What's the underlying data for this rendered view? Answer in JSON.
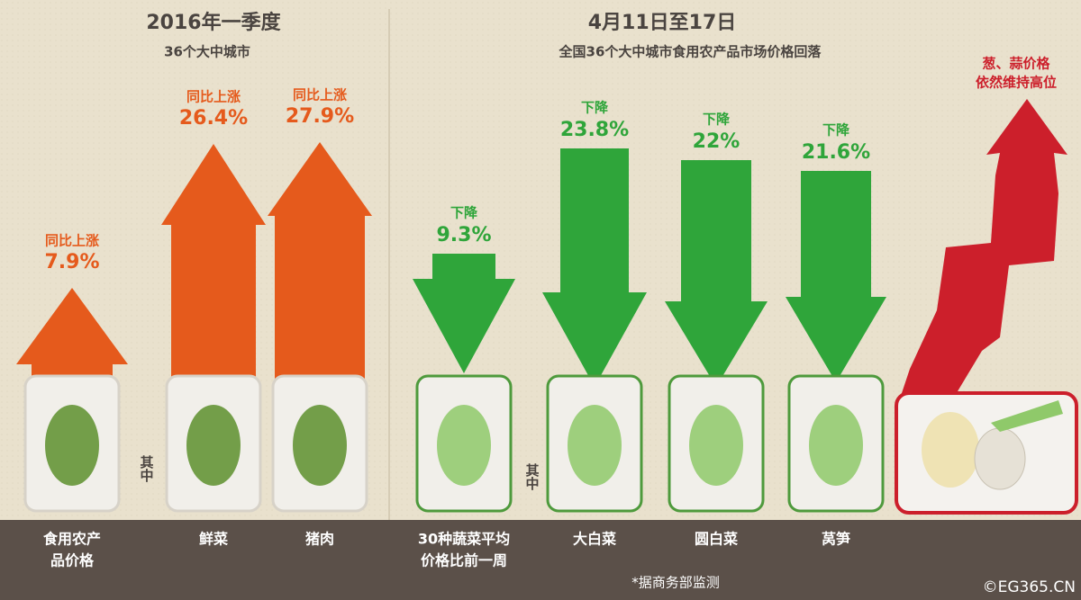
{
  "left": {
    "title": "2016年一季度",
    "subtitle": "36个大中城市",
    "note": "其中",
    "items": [
      {
        "label_lines": [
          "食用农产",
          "品价格"
        ],
        "change": "同比上涨",
        "value": "7.9%"
      },
      {
        "label_lines": [
          "鲜菜"
        ],
        "change": "同比上涨",
        "value": "26.4%"
      },
      {
        "label_lines": [
          "猪肉"
        ],
        "change": "同比上涨",
        "value": "27.9%"
      }
    ]
  },
  "right": {
    "title": "4月11日至17日",
    "subtitle": "全国36个大中城市食用农产品市场价格回落",
    "note": "其中",
    "items": [
      {
        "label_lines": [
          "30种蔬菜平均",
          "价格比前一周"
        ],
        "change": "下降",
        "value": "9.3%"
      },
      {
        "label_lines": [
          "大白菜"
        ],
        "change": "下降",
        "value": "23.8%"
      },
      {
        "label_lines": [
          "圆白菜"
        ],
        "change": "下降",
        "value": "22%"
      },
      {
        "label_lines": [
          "莴笋"
        ],
        "change": "下降",
        "value": "21.6%"
      }
    ]
  },
  "highlight": {
    "lines": [
      "葱、蒜价格",
      "依然维持高位"
    ]
  },
  "footer": {
    "source": "*据商务部监测",
    "credit": "©EG365.CN"
  }
}
